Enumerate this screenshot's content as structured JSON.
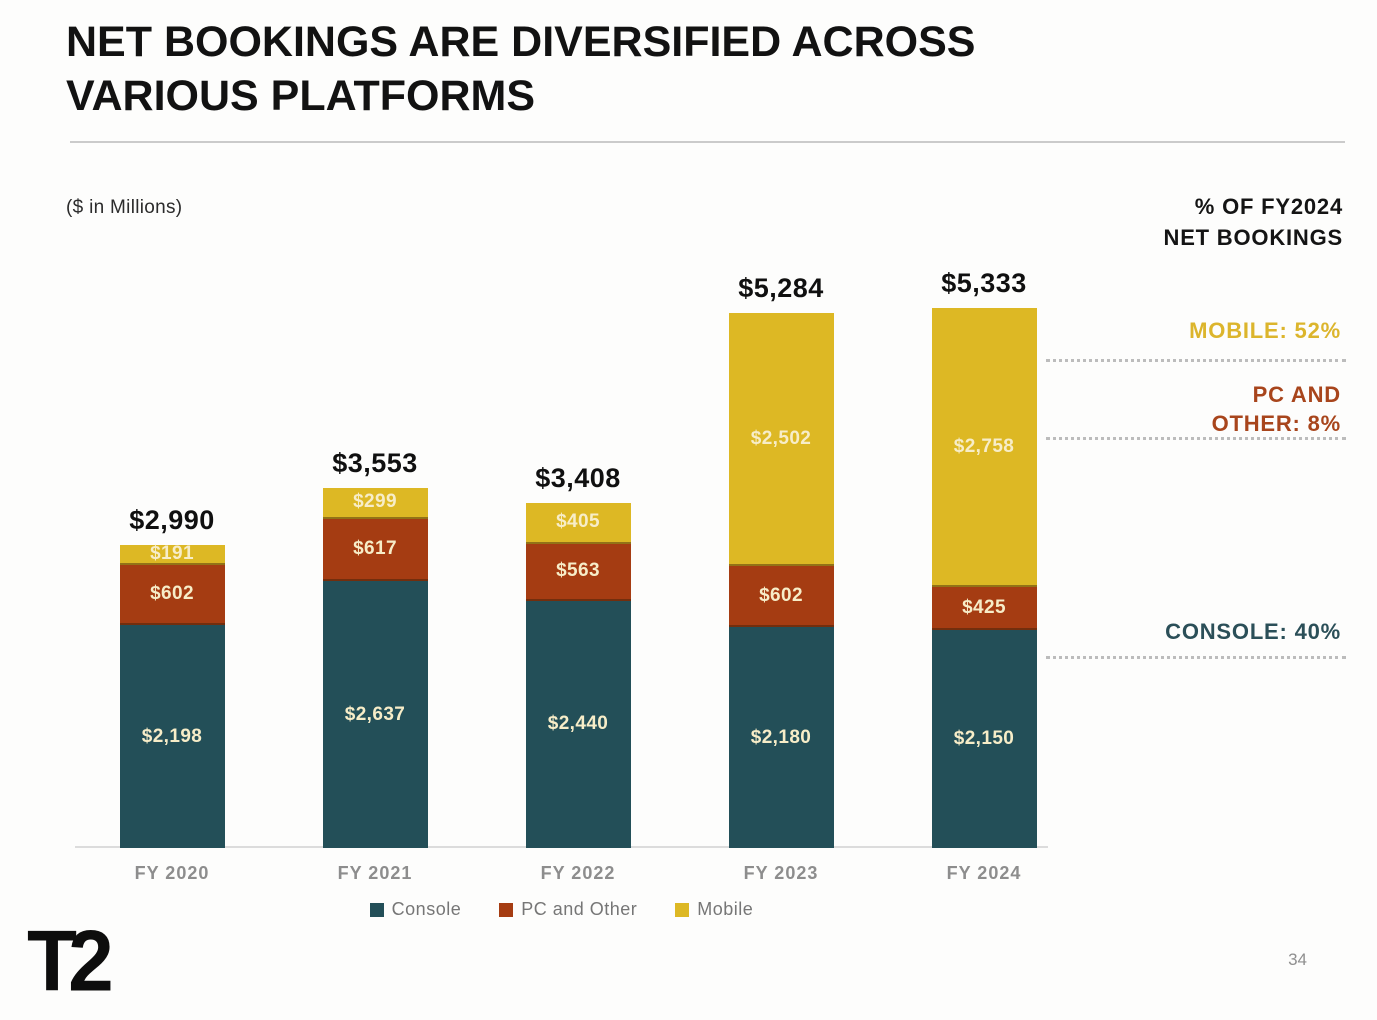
{
  "slide": {
    "title_line1": "NET BOOKINGS ARE DIVERSIFIED ACROSS",
    "title_line2": "VARIOUS PLATFORMS",
    "units_note": "($ in Millions)",
    "page_number": "34",
    "logo_text": "T2"
  },
  "right_panel": {
    "header_line1": "% OF FY2024",
    "header_line2": "NET BOOKINGS",
    "mobile_label": "MOBILE: 52%",
    "pc_label_line1": "PC AND",
    "pc_label_line2": "OTHER: 8%",
    "console_label": "CONSOLE: 40%",
    "mobile_color": "#dcb52c",
    "pc_color": "#a8451c",
    "console_color": "#2b4f58"
  },
  "chart_data": {
    "type": "bar",
    "stacked": true,
    "title": "NET BOOKINGS ARE DIVERSIFIED ACROSS VARIOUS PLATFORMS",
    "units": "($ in Millions)",
    "categories": [
      "FY 2020",
      "FY 2021",
      "FY 2022",
      "FY 2023",
      "FY 2024"
    ],
    "series": [
      {
        "name": "Console",
        "color": "#234f58",
        "values": [
          2198,
          2637,
          2440,
          2180,
          2150
        ]
      },
      {
        "name": "PC and Other",
        "color": "#a53c12",
        "values": [
          602,
          617,
          563,
          602,
          425
        ]
      },
      {
        "name": "Mobile",
        "color": "#ddb824",
        "values": [
          191,
          299,
          405,
          2502,
          2758
        ]
      }
    ],
    "totals_display": [
      "$2,990",
      "$3,553",
      "$3,408",
      "$5,284",
      "$5,333"
    ],
    "value_prefix": "$",
    "fy2024_share": {
      "Mobile": "52%",
      "PC and Other": "8%",
      "Console": "40%"
    },
    "legend_position": "bottom",
    "grid": false
  }
}
